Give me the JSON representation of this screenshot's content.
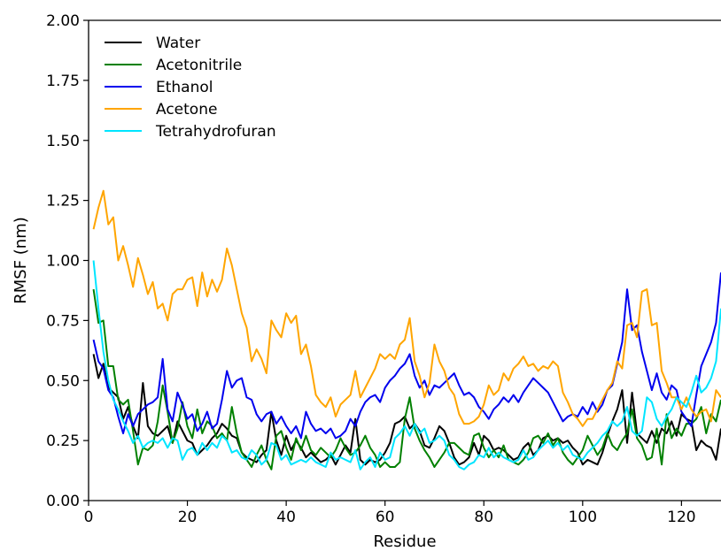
{
  "chart_data": {
    "type": "line",
    "title": "",
    "xlabel": "Residue",
    "ylabel": "RMSF (nm)",
    "xlim": [
      0,
      128
    ],
    "ylim": [
      0,
      2.0
    ],
    "xticks": [
      "0",
      "20",
      "40",
      "60",
      "80",
      "100",
      "120"
    ],
    "yticks": [
      "0.00",
      "0.25",
      "0.50",
      "0.75",
      "1.00",
      "1.25",
      "1.50",
      "1.75",
      "2.00"
    ],
    "grid": false,
    "legend_position": "top-left",
    "x": {
      "start": 1,
      "step": 1
    },
    "series": [
      {
        "name": "Water",
        "color": "#000000",
        "values": [
          0.61,
          0.51,
          0.57,
          0.47,
          0.45,
          0.43,
          0.34,
          0.39,
          0.31,
          0.26,
          0.49,
          0.31,
          0.28,
          0.27,
          0.29,
          0.31,
          0.24,
          0.33,
          0.29,
          0.25,
          0.24,
          0.19,
          0.21,
          0.23,
          0.26,
          0.28,
          0.32,
          0.3,
          0.27,
          0.26,
          0.2,
          0.18,
          0.17,
          0.16,
          0.19,
          0.21,
          0.37,
          0.25,
          0.19,
          0.27,
          0.21,
          0.25,
          0.22,
          0.18,
          0.2,
          0.18,
          0.16,
          0.17,
          0.19,
          0.15,
          0.19,
          0.23,
          0.2,
          0.34,
          0.17,
          0.15,
          0.17,
          0.16,
          0.17,
          0.2,
          0.24,
          0.32,
          0.33,
          0.35,
          0.3,
          0.32,
          0.29,
          0.23,
          0.22,
          0.26,
          0.31,
          0.29,
          0.24,
          0.18,
          0.15,
          0.16,
          0.18,
          0.24,
          0.19,
          0.27,
          0.25,
          0.21,
          0.22,
          0.21,
          0.19,
          0.17,
          0.18,
          0.22,
          0.24,
          0.19,
          0.21,
          0.26,
          0.27,
          0.25,
          0.26,
          0.24,
          0.25,
          0.22,
          0.2,
          0.15,
          0.17,
          0.16,
          0.15,
          0.2,
          0.27,
          0.33,
          0.38,
          0.46,
          0.24,
          0.45,
          0.28,
          0.26,
          0.24,
          0.29,
          0.24,
          0.3,
          0.28,
          0.33,
          0.27,
          0.36,
          0.34,
          0.33,
          0.21,
          0.25,
          0.23,
          0.22,
          0.17,
          0.3
        ]
      },
      {
        "name": "Acetonitrile",
        "color": "#008000",
        "values": [
          0.88,
          0.74,
          0.75,
          0.56,
          0.56,
          0.42,
          0.4,
          0.42,
          0.29,
          0.15,
          0.22,
          0.21,
          0.23,
          0.33,
          0.48,
          0.37,
          0.24,
          0.3,
          0.41,
          0.31,
          0.26,
          0.38,
          0.28,
          0.33,
          0.31,
          0.26,
          0.28,
          0.25,
          0.39,
          0.28,
          0.2,
          0.17,
          0.14,
          0.19,
          0.23,
          0.17,
          0.13,
          0.27,
          0.29,
          0.22,
          0.17,
          0.26,
          0.21,
          0.27,
          0.21,
          0.19,
          0.22,
          0.2,
          0.18,
          0.21,
          0.26,
          0.22,
          0.19,
          0.2,
          0.23,
          0.27,
          0.22,
          0.19,
          0.14,
          0.16,
          0.14,
          0.14,
          0.16,
          0.34,
          0.43,
          0.3,
          0.25,
          0.21,
          0.18,
          0.14,
          0.17,
          0.2,
          0.24,
          0.24,
          0.22,
          0.2,
          0.19,
          0.27,
          0.28,
          0.22,
          0.18,
          0.21,
          0.18,
          0.23,
          0.17,
          0.16,
          0.15,
          0.17,
          0.2,
          0.26,
          0.27,
          0.24,
          0.28,
          0.23,
          0.26,
          0.2,
          0.17,
          0.15,
          0.18,
          0.21,
          0.27,
          0.23,
          0.19,
          0.22,
          0.28,
          0.23,
          0.21,
          0.25,
          0.28,
          0.38,
          0.26,
          0.23,
          0.17,
          0.18,
          0.3,
          0.15,
          0.36,
          0.26,
          0.3,
          0.27,
          0.32,
          0.32,
          0.34,
          0.39,
          0.28,
          0.36,
          0.33,
          0.42
        ]
      },
      {
        "name": "Ethanol",
        "color": "#0000ee",
        "values": [
          0.67,
          0.58,
          0.55,
          0.46,
          0.43,
          0.35,
          0.28,
          0.36,
          0.31,
          0.36,
          0.38,
          0.4,
          0.41,
          0.43,
          0.59,
          0.38,
          0.33,
          0.45,
          0.4,
          0.34,
          0.36,
          0.29,
          0.32,
          0.37,
          0.3,
          0.32,
          0.42,
          0.54,
          0.47,
          0.5,
          0.51,
          0.43,
          0.42,
          0.36,
          0.33,
          0.36,
          0.37,
          0.32,
          0.35,
          0.31,
          0.28,
          0.31,
          0.26,
          0.37,
          0.32,
          0.29,
          0.3,
          0.28,
          0.3,
          0.26,
          0.27,
          0.29,
          0.34,
          0.31,
          0.37,
          0.41,
          0.43,
          0.44,
          0.41,
          0.47,
          0.5,
          0.52,
          0.55,
          0.57,
          0.61,
          0.52,
          0.47,
          0.5,
          0.44,
          0.48,
          0.47,
          0.49,
          0.51,
          0.53,
          0.48,
          0.44,
          0.45,
          0.43,
          0.39,
          0.37,
          0.34,
          0.38,
          0.4,
          0.43,
          0.41,
          0.44,
          0.41,
          0.45,
          0.48,
          0.51,
          0.49,
          0.47,
          0.45,
          0.41,
          0.37,
          0.33,
          0.35,
          0.36,
          0.35,
          0.39,
          0.36,
          0.41,
          0.37,
          0.4,
          0.46,
          0.48,
          0.57,
          0.66,
          0.88,
          0.71,
          0.73,
          0.62,
          0.54,
          0.46,
          0.53,
          0.45,
          0.42,
          0.48,
          0.46,
          0.37,
          0.34,
          0.31,
          0.44,
          0.56,
          0.61,
          0.66,
          0.74,
          0.95
        ]
      },
      {
        "name": "Acetone",
        "color": "#ffa500",
        "values": [
          1.13,
          1.22,
          1.29,
          1.15,
          1.18,
          1.0,
          1.06,
          0.98,
          0.89,
          1.01,
          0.94,
          0.86,
          0.91,
          0.8,
          0.82,
          0.75,
          0.86,
          0.88,
          0.88,
          0.92,
          0.93,
          0.81,
          0.95,
          0.85,
          0.92,
          0.87,
          0.92,
          1.05,
          0.98,
          0.88,
          0.78,
          0.72,
          0.58,
          0.63,
          0.59,
          0.53,
          0.75,
          0.71,
          0.68,
          0.78,
          0.74,
          0.77,
          0.61,
          0.65,
          0.56,
          0.44,
          0.41,
          0.39,
          0.43,
          0.35,
          0.4,
          0.42,
          0.44,
          0.54,
          0.43,
          0.47,
          0.51,
          0.55,
          0.61,
          0.59,
          0.61,
          0.59,
          0.65,
          0.67,
          0.76,
          0.58,
          0.52,
          0.43,
          0.49,
          0.65,
          0.58,
          0.54,
          0.47,
          0.44,
          0.36,
          0.32,
          0.32,
          0.33,
          0.35,
          0.4,
          0.48,
          0.44,
          0.46,
          0.53,
          0.5,
          0.55,
          0.57,
          0.6,
          0.56,
          0.57,
          0.54,
          0.56,
          0.55,
          0.58,
          0.56,
          0.45,
          0.41,
          0.36,
          0.34,
          0.31,
          0.34,
          0.34,
          0.38,
          0.42,
          0.46,
          0.49,
          0.58,
          0.55,
          0.73,
          0.74,
          0.68,
          0.87,
          0.88,
          0.73,
          0.74,
          0.54,
          0.49,
          0.43,
          0.43,
          0.38,
          0.43,
          0.38,
          0.35,
          0.37,
          0.38,
          0.33,
          0.46,
          0.43
        ]
      },
      {
        "name": "Tetrahydrofuran",
        "color": "#00e5ff",
        "values": [
          1.0,
          0.8,
          0.62,
          0.5,
          0.42,
          0.38,
          0.33,
          0.29,
          0.24,
          0.27,
          0.22,
          0.24,
          0.25,
          0.24,
          0.26,
          0.22,
          0.26,
          0.25,
          0.17,
          0.21,
          0.22,
          0.19,
          0.24,
          0.21,
          0.24,
          0.22,
          0.27,
          0.25,
          0.2,
          0.21,
          0.18,
          0.17,
          0.21,
          0.19,
          0.15,
          0.17,
          0.24,
          0.23,
          0.17,
          0.19,
          0.15,
          0.16,
          0.17,
          0.16,
          0.18,
          0.16,
          0.15,
          0.14,
          0.2,
          0.17,
          0.18,
          0.17,
          0.16,
          0.21,
          0.13,
          0.16,
          0.18,
          0.14,
          0.2,
          0.17,
          0.18,
          0.26,
          0.28,
          0.31,
          0.27,
          0.32,
          0.28,
          0.3,
          0.24,
          0.25,
          0.27,
          0.25,
          0.19,
          0.17,
          0.14,
          0.13,
          0.15,
          0.16,
          0.19,
          0.18,
          0.22,
          0.18,
          0.2,
          0.18,
          0.17,
          0.16,
          0.17,
          0.21,
          0.17,
          0.18,
          0.21,
          0.23,
          0.25,
          0.22,
          0.24,
          0.21,
          0.23,
          0.19,
          0.18,
          0.17,
          0.2,
          0.22,
          0.24,
          0.27,
          0.29,
          0.33,
          0.31,
          0.33,
          0.39,
          0.29,
          0.27,
          0.29,
          0.43,
          0.41,
          0.34,
          0.31,
          0.35,
          0.38,
          0.43,
          0.41,
          0.39,
          0.45,
          0.52,
          0.45,
          0.47,
          0.51,
          0.58,
          0.8
        ]
      }
    ]
  }
}
